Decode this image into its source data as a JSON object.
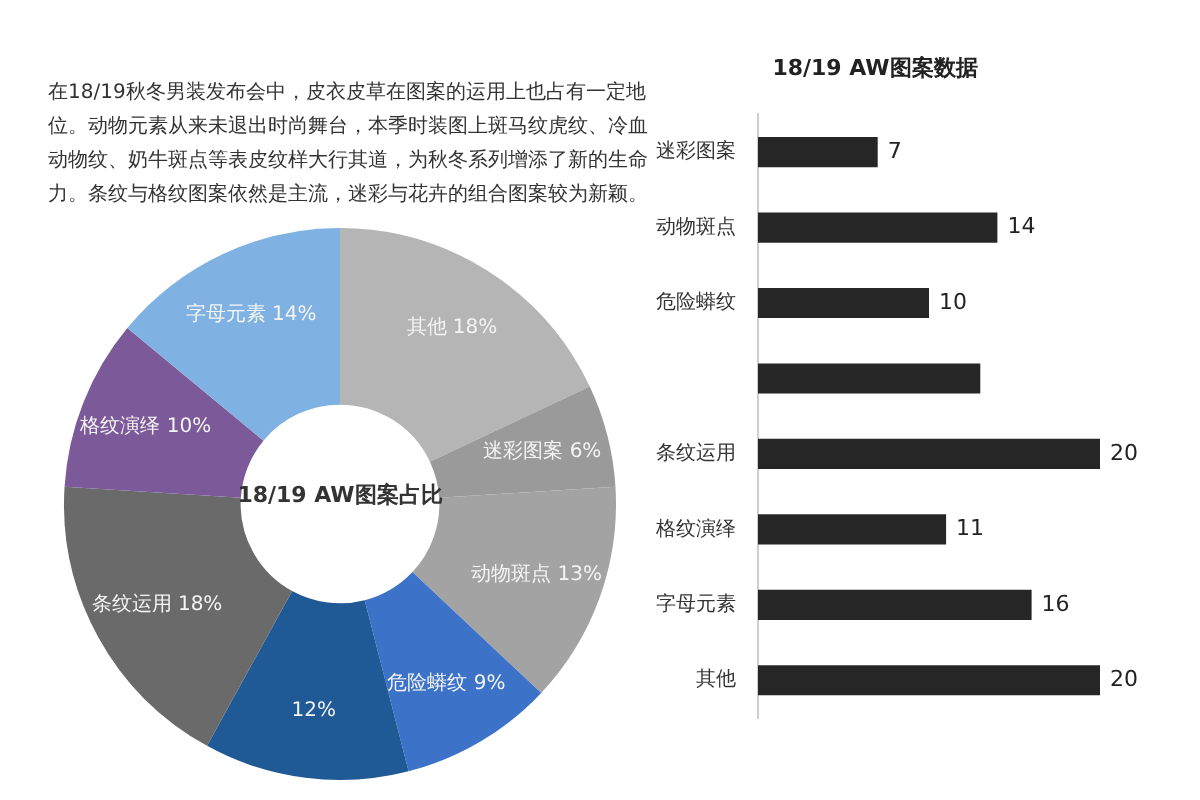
{
  "chart_data": [
    {
      "type": "donut",
      "title": "18/19 AW图案占比",
      "annotations": [
        "在18/19秋冬男装发布会中，皮衣皮草在图案的运用上也占有一定地位。动物元素从来未退出时尚舞台，本季时装图上斑马纹虎纹、冷血动物纹、奶牛斑点等表皮纹样大行其道，为秋冬系列增添了新的生命力。条纹与格纹图案依然是主流，迷彩与花卉的组合图案较为新颖。"
      ],
      "categories": [
        "其他",
        "迷彩图案",
        "动物斑点",
        "危险蟒纹",
        null,
        "条纹运用",
        "格纹演绎",
        "字母元素"
      ],
      "values": [
        18,
        6,
        13,
        9,
        12,
        18,
        10,
        14
      ],
      "value_labels": [
        "18%",
        "6%",
        "13%",
        "9%",
        "12%",
        "18%",
        "10%",
        "14%"
      ],
      "colors": [
        "#b5b5b5",
        "#9a9a9a",
        "#a3a3a3",
        "#3c72c8",
        "#1f5a96",
        "#6a6a6a",
        "#7c5a9a",
        "#7fb2e2"
      ]
    },
    {
      "type": "bar",
      "orientation": "horizontal",
      "title": "18/19 AW图案数据",
      "tick_labels": "y",
      "categories": [
        "迷彩图案",
        "动物斑点",
        "危险蟒纹",
        null,
        "条纹运用",
        "格纹演绎",
        "字母元素",
        "其他"
      ],
      "values": [
        7,
        14,
        10,
        13,
        20,
        11,
        16,
        20
      ],
      "value_labels": [
        "7",
        "14",
        "10",
        null,
        "20",
        "11",
        "16",
        "20"
      ],
      "color": "#262626"
    }
  ]
}
